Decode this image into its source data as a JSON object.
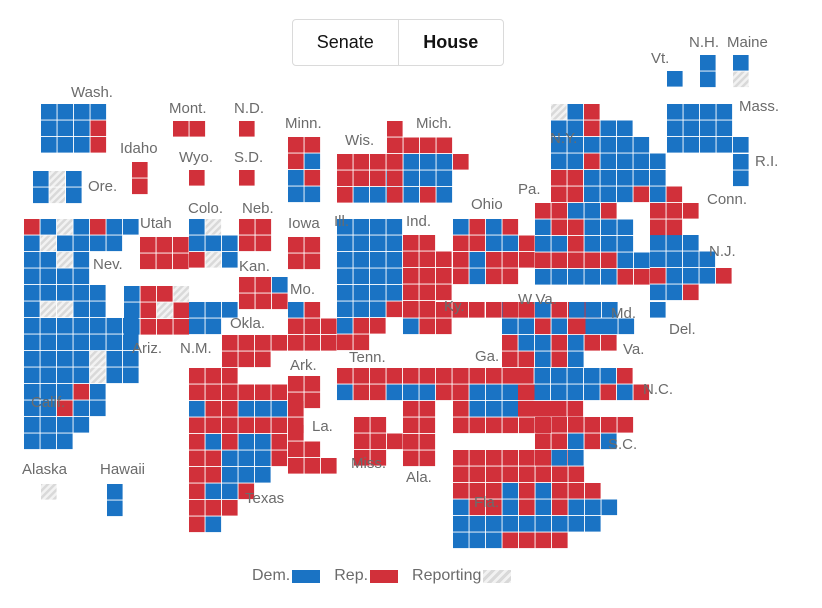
{
  "tabs": {
    "senate": "Senate",
    "house": "House",
    "active": "House"
  },
  "legend": {
    "dem": "Dem.",
    "rep": "Rep.",
    "reporting": "Reporting"
  },
  "colors": {
    "dem": "#1a73c4",
    "rep": "#d1303a",
    "reporting_a": "#d9d9d9",
    "reporting_b": "#f2f2f2",
    "label": "#6b6b6b"
  },
  "state_labels": {
    "wash": "Wash.",
    "ore": "Ore.",
    "calif": "Calif.",
    "nev": "Nev.",
    "idaho": "Idaho",
    "mont": "Mont.",
    "wyo": "Wyo.",
    "utah": "Utah",
    "colo": "Colo.",
    "ariz": "Ariz.",
    "nm": "N.M.",
    "nd": "N.D.",
    "sd": "S.D.",
    "neb": "Neb.",
    "kan": "Kan.",
    "okla": "Okla.",
    "texas": "Texas",
    "minn": "Minn.",
    "iowa": "Iowa",
    "mo": "Mo.",
    "ark": "Ark.",
    "la": "La.",
    "wis": "Wis.",
    "ill": "Ill.",
    "mich": "Mich.",
    "ind": "Ind.",
    "ohio": "Ohio",
    "ky": "Ky.",
    "tenn": "Tenn.",
    "miss": "Miss.",
    "ala": "Ala.",
    "ga": "Ga.",
    "fla": "Fla.",
    "sc": "S.C.",
    "nc": "N.C.",
    "va": "Va.",
    "wva": "W.Va.",
    "md": "Md.",
    "del": "Del.",
    "pa": "Pa.",
    "ny": "N.Y.",
    "nj": "N.J.",
    "conn": "Conn.",
    "ri": "R.I.",
    "mass": "Mass.",
    "vt": "Vt.",
    "nh": "N.H.",
    "maine": "Maine",
    "alaska": "Alaska",
    "hawaii": "Hawaii"
  },
  "states": [
    {
      "id": "wash",
      "rows": [
        "DDDD",
        "DDDR",
        "DDDR"
      ]
    },
    {
      "id": "ore",
      "rows": [
        "DXD",
        "DXD"
      ]
    },
    {
      "id": "calif",
      "rows": [
        "RDXD",
        "DXDD",
        "DDXD",
        "DDDD",
        "DDDDD",
        "DXXDD",
        "DDDDDDD",
        "DDDDDDD",
        "DDDDXDD",
        "DDDDXDD",
        "DDDRD",
        "DDRDD",
        "DDDD",
        "DDD"
      ]
    },
    {
      "id": "nev",
      "rows": [
        "RDD",
        "DD"
      ]
    },
    {
      "id": "idaho",
      "rows": [
        "R",
        "R"
      ]
    },
    {
      "id": "mont",
      "rows": [
        "RR"
      ]
    },
    {
      "id": "wyo",
      "rows": [
        "R"
      ]
    },
    {
      "id": "utah",
      "rows": [
        "RRR",
        "RRR"
      ]
    },
    {
      "id": "colo",
      "rows": [
        "DX",
        "DDD",
        "RXD"
      ]
    },
    {
      "id": "ariz",
      "rows": [
        "DRRX",
        "DRXR",
        "DRRR"
      ]
    },
    {
      "id": "nm",
      "rows": [
        "DDD",
        "DD"
      ]
    },
    {
      "id": "nd",
      "rows": [
        "R"
      ]
    },
    {
      "id": "sd",
      "rows": [
        "R"
      ]
    },
    {
      "id": "neb",
      "rows": [
        "RR",
        "RR"
      ]
    },
    {
      "id": "kan",
      "rows": [
        "RRD",
        "RRR"
      ]
    },
    {
      "id": "okla",
      "rows": [
        "RRRR",
        "RRR"
      ]
    },
    {
      "id": "texas",
      "rows": [
        "RRR",
        "RRRRRR",
        "DRRDDDR",
        "RRRRRRR",
        "RDRDDR",
        "RRDDDR",
        "RRDDD",
        "RDDR",
        "RRR",
        "RD"
      ]
    },
    {
      "id": "minn",
      "rows": [
        "RR",
        "RD",
        "DR",
        "DD"
      ]
    },
    {
      "id": "iowa",
      "rows": [
        "RR",
        "RR"
      ]
    },
    {
      "id": "mo",
      "rows": [
        "DR",
        "RRR",
        "RRR"
      ]
    },
    {
      "id": "ark",
      "rows": [
        "RR",
        "RR"
      ]
    },
    {
      "id": "la",
      "rows": [
        "R",
        "RR",
        "RRR"
      ]
    },
    {
      "id": "wis",
      "rows": [
        "RRRR",
        "RRRD",
        "RDDD"
      ]
    },
    {
      "id": "ill",
      "rows": [
        "DDDD",
        "DDDD",
        "DDDD",
        "DDDD",
        "DDDD",
        "DDDR",
        "DRR",
        "RR"
      ]
    },
    {
      "id": "mich",
      "rows": [
        "R",
        "RRRR",
        "RDDDR",
        "RDDD",
        "RDRD"
      ]
    },
    {
      "id": "ind",
      "rows": [
        "RR",
        "RRR",
        "RRR",
        "RRR",
        "RR"
      ]
    },
    {
      "id": "ohio",
      "rows": [
        "DRDR",
        "RRDDR",
        "RDRRR",
        "RDRR"
      ]
    },
    {
      "id": "ky",
      "rows": [
        "RRRRR",
        "DRR"
      ]
    },
    {
      "id": "tenn",
      "rows": [
        "RRRRRRRR",
        "DRRDDDRR"
      ]
    },
    {
      "id": "miss",
      "rows": [
        "RR",
        "RRR",
        "RR"
      ]
    },
    {
      "id": "ala",
      "rows": [
        "RR",
        "RR",
        "RR",
        "RR"
      ]
    },
    {
      "id": "ga",
      "rows": [
        "RRRR",
        "RDDDR",
        "RDDDRR",
        "RRRRRR"
      ]
    },
    {
      "id": "fla",
      "rows": [
        "RRRRRRR",
        "RRRRRRRR",
        "RRRDRDRRR",
        "DRRDRDRDDD",
        "DDDDDDDDD",
        "DDDRRRR"
      ]
    },
    {
      "id": "sc",
      "rows": [
        "RRRRRR",
        "RRDRD",
        "RDD"
      ]
    },
    {
      "id": "nc",
      "rows": [
        "RDDDDDR",
        "RDDDDRDR",
        "RRRR"
      ]
    },
    {
      "id": "va",
      "rows": [
        "DRDRRR",
        "DDRDRRD",
        "RDDRDRR",
        "RRDRD"
      ]
    },
    {
      "id": "wva",
      "rows": [
        "RRR"
      ]
    },
    {
      "id": "md",
      "rows": [
        "DDD",
        "RDDD"
      ]
    },
    {
      "id": "del",
      "rows": [
        "D"
      ]
    },
    {
      "id": "pa",
      "rows": [
        "RRDDR",
        "DRRDDD",
        "DDRDDD",
        "RRRRRDD",
        "DDDDDRR"
      ]
    },
    {
      "id": "ny",
      "rows": [
        "XDR",
        "DDRDD",
        "DDDDDD",
        "DDRDDDD",
        "RRDDDDD",
        "RRDDDRDR"
      ]
    },
    {
      "id": "nj",
      "rows": [
        "DDD",
        "DDDD",
        "RDDDR",
        "DDR"
      ]
    },
    {
      "id": "conn",
      "rows": [
        "RRR",
        "RR"
      ]
    },
    {
      "id": "ri",
      "rows": [
        "D",
        "D"
      ]
    },
    {
      "id": "mass",
      "rows": [
        "DDDD",
        "DDDD",
        "DDDDD"
      ]
    },
    {
      "id": "vt",
      "rows": [
        "D"
      ]
    },
    {
      "id": "nh",
      "rows": [
        "D",
        "D"
      ]
    },
    {
      "id": "maine",
      "rows": [
        "D",
        "X"
      ]
    },
    {
      "id": "alaska",
      "rows": [
        "X"
      ]
    },
    {
      "id": "hawaii",
      "rows": [
        "D",
        "D"
      ]
    }
  ]
}
